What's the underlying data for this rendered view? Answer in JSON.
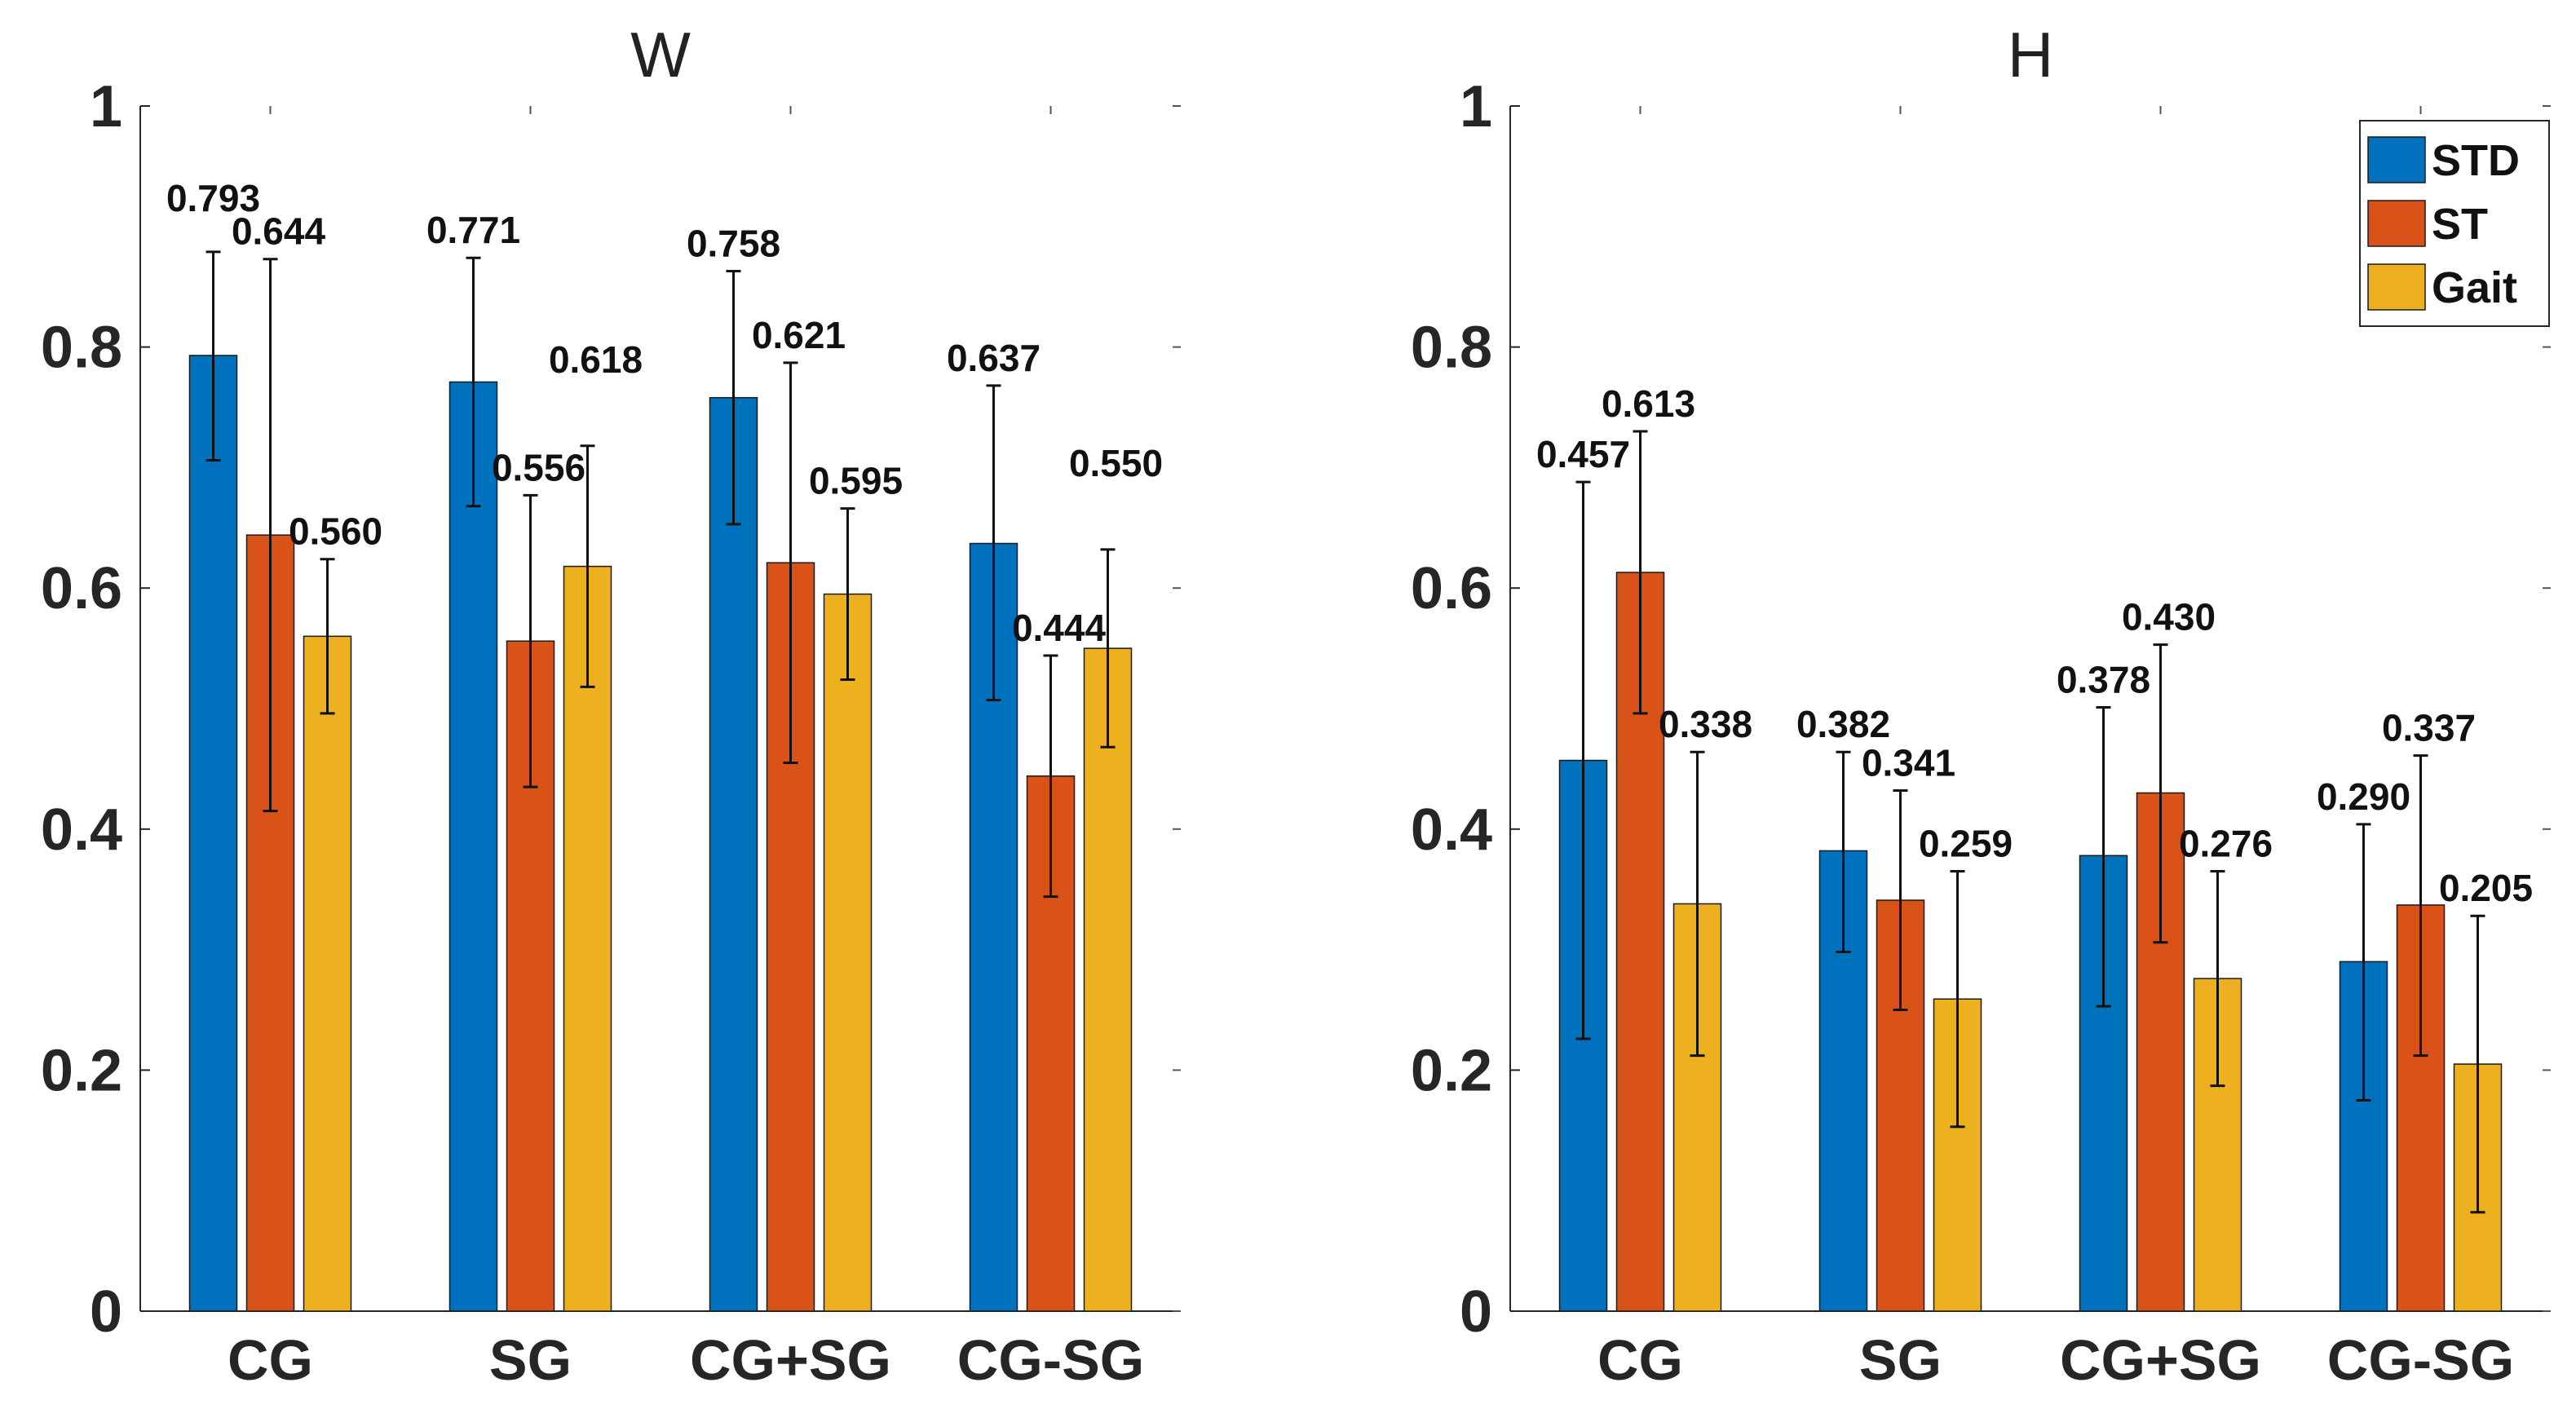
{
  "chart_data": [
    {
      "type": "bar",
      "title": "W",
      "xlabel": "",
      "ylabel": "",
      "ylim": [
        0,
        1
      ],
      "yticks": [
        0,
        0.2,
        0.4,
        0.6,
        0.8,
        1
      ],
      "ytick_labels": [
        "0",
        "0.2",
        "0.4",
        "0.6",
        "0.8",
        "1"
      ],
      "grid": false,
      "categories": [
        "CG",
        "SG",
        "CG+SG",
        "CG-SG"
      ],
      "series": [
        {
          "name": "STD",
          "color": "#0072BD",
          "values": [
            0.793,
            0.771,
            0.758,
            0.637
          ],
          "labels": [
            "0.793",
            "0.771",
            "0.758",
            "0.637"
          ],
          "err_low": [
            0.706,
            0.668,
            0.653,
            0.507
          ],
          "err_high": [
            0.879,
            0.874,
            0.863,
            0.768
          ]
        },
        {
          "name": "ST",
          "color": "#D95319",
          "values": [
            0.644,
            0.556,
            0.621,
            0.444
          ],
          "labels": [
            "0.644",
            "0.556",
            "0.621",
            "0.444"
          ],
          "err_low": [
            0.415,
            0.435,
            0.455,
            0.344
          ],
          "err_high": [
            0.873,
            0.677,
            0.787,
            0.544
          ]
        },
        {
          "name": "Gait",
          "color": "#EDB120",
          "values": [
            0.56,
            0.618,
            0.595,
            0.55
          ],
          "labels": [
            "0.560",
            "0.618",
            "0.595",
            "0.550"
          ],
          "err_low": [
            0.496,
            0.518,
            0.524,
            0.468
          ],
          "err_high": [
            0.624,
            0.718,
            0.666,
            0.632
          ]
        }
      ]
    },
    {
      "type": "bar",
      "title": "H",
      "xlabel": "",
      "ylabel": "",
      "ylim": [
        0,
        1
      ],
      "yticks": [
        0,
        0.2,
        0.4,
        0.6,
        0.8,
        1
      ],
      "ytick_labels": [
        "0",
        "0.2",
        "0.4",
        "0.6",
        "0.8",
        "1"
      ],
      "grid": false,
      "legend": {
        "placement": "top-right",
        "entries": [
          "STD",
          "ST",
          "Gait"
        ]
      },
      "categories": [
        "CG",
        "SG",
        "CG+SG",
        "CG-SG"
      ],
      "series": [
        {
          "name": "STD",
          "color": "#0072BD",
          "values": [
            0.457,
            0.382,
            0.378,
            0.29
          ],
          "labels": [
            "0.457",
            "0.382",
            "0.378",
            "0.290"
          ],
          "err_low": [
            0.226,
            0.298,
            0.253,
            0.175
          ],
          "err_high": [
            0.688,
            0.464,
            0.501,
            0.404
          ]
        },
        {
          "name": "ST",
          "color": "#D95319",
          "values": [
            0.613,
            0.341,
            0.43,
            0.337
          ],
          "labels": [
            "0.613",
            "0.341",
            "0.430",
            "0.337"
          ],
          "err_low": [
            0.496,
            0.25,
            0.306,
            0.212
          ],
          "err_high": [
            0.73,
            0.432,
            0.553,
            0.461
          ]
        },
        {
          "name": "Gait",
          "color": "#EDB120",
          "values": [
            0.338,
            0.259,
            0.276,
            0.205
          ],
          "labels": [
            "0.338",
            "0.259",
            "0.276",
            "0.205"
          ],
          "err_low": [
            0.212,
            0.153,
            0.187,
            0.082
          ],
          "err_high": [
            0.464,
            0.365,
            0.365,
            0.328
          ]
        }
      ]
    }
  ]
}
